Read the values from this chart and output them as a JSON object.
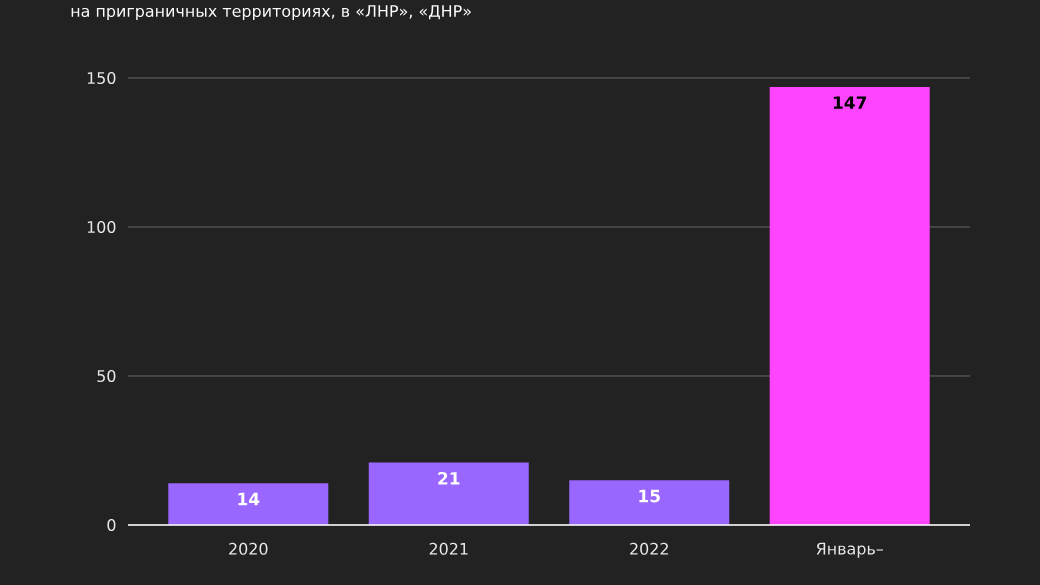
{
  "chart_data": {
    "type": "bar",
    "title": "на приграничных территориях, в «ЛНР», «ДНР»",
    "categories": [
      "2020",
      "2021",
      "2022",
      "Январь–"
    ],
    "values": [
      14,
      21,
      15,
      147
    ],
    "colors": [
      "#9966ff",
      "#9966ff",
      "#9966ff",
      "#ff44ff"
    ],
    "ylim": [
      0,
      150
    ],
    "yticks": [
      0,
      50,
      100,
      150
    ],
    "grid": "y",
    "data_labels": true
  }
}
